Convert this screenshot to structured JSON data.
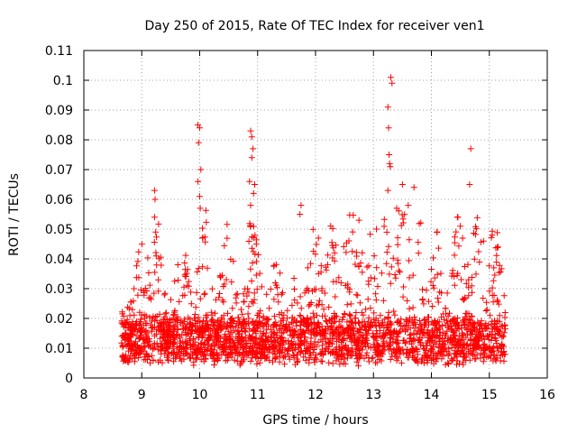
{
  "chart_data": {
    "type": "scatter",
    "title": "Day 250 of 2015, Rate Of TEC Index for receiver ven1",
    "xlabel": "GPS time / hours",
    "ylabel": "ROTI / TECUs",
    "xlim": [
      8,
      16
    ],
    "ylim": [
      0,
      0.11
    ],
    "x_ticks": [
      8,
      9,
      10,
      11,
      12,
      13,
      14,
      15,
      16
    ],
    "y_ticks": [
      0,
      0.01,
      0.02,
      0.03,
      0.04,
      0.05,
      0.06,
      0.07,
      0.08,
      0.09,
      0.1,
      0.11
    ],
    "x_tick_labels": [
      "8",
      "9",
      "10",
      "11",
      "12",
      "13",
      "14",
      "15",
      "16"
    ],
    "y_tick_labels": [
      "0",
      "0.01",
      "0.02",
      "0.03",
      "0.04",
      "0.05",
      "0.06",
      "0.07",
      "0.08",
      "0.09",
      "0.1",
      "0.11"
    ],
    "grid": true,
    "marker": "+",
    "color": "#ff0000",
    "series": [
      {
        "name": "ROTI",
        "x_range": [
          8.65,
          15.28
        ],
        "baseline_range": [
          0.005,
          0.02
        ],
        "notable_points": [
          {
            "x": 9.22,
            "y": 0.063
          },
          {
            "x": 9.23,
            "y": 0.06
          },
          {
            "x": 9.22,
            "y": 0.054
          },
          {
            "x": 9.24,
            "y": 0.049
          },
          {
            "x": 9.97,
            "y": 0.085
          },
          {
            "x": 10.0,
            "y": 0.084
          },
          {
            "x": 9.98,
            "y": 0.079
          },
          {
            "x": 10.02,
            "y": 0.07
          },
          {
            "x": 9.97,
            "y": 0.066
          },
          {
            "x": 10.0,
            "y": 0.061
          },
          {
            "x": 10.01,
            "y": 0.057
          },
          {
            "x": 10.88,
            "y": 0.083
          },
          {
            "x": 10.9,
            "y": 0.081
          },
          {
            "x": 10.92,
            "y": 0.077
          },
          {
            "x": 10.9,
            "y": 0.074
          },
          {
            "x": 10.86,
            "y": 0.066
          },
          {
            "x": 10.95,
            "y": 0.065
          },
          {
            "x": 10.93,
            "y": 0.062
          },
          {
            "x": 10.88,
            "y": 0.058
          },
          {
            "x": 11.75,
            "y": 0.058
          },
          {
            "x": 11.73,
            "y": 0.055
          },
          {
            "x": 13.3,
            "y": 0.101
          },
          {
            "x": 13.32,
            "y": 0.099
          },
          {
            "x": 13.25,
            "y": 0.091
          },
          {
            "x": 13.26,
            "y": 0.084
          },
          {
            "x": 13.27,
            "y": 0.075
          },
          {
            "x": 13.28,
            "y": 0.072
          },
          {
            "x": 13.29,
            "y": 0.071
          },
          {
            "x": 13.25,
            "y": 0.063
          },
          {
            "x": 13.5,
            "y": 0.065
          },
          {
            "x": 13.7,
            "y": 0.064
          },
          {
            "x": 13.4,
            "y": 0.057
          },
          {
            "x": 13.6,
            "y": 0.058
          },
          {
            "x": 14.68,
            "y": 0.077
          },
          {
            "x": 14.66,
            "y": 0.065
          },
          {
            "x": 14.45,
            "y": 0.054
          },
          {
            "x": 14.5,
            "y": 0.051
          },
          {
            "x": 12.75,
            "y": 0.053
          },
          {
            "x": 13.05,
            "y": 0.05
          },
          {
            "x": 12.05,
            "y": 0.047
          },
          {
            "x": 10.05,
            "y": 0.047
          },
          {
            "x": 15.15,
            "y": 0.044
          },
          {
            "x": 14.9,
            "y": 0.046
          }
        ]
      }
    ]
  }
}
